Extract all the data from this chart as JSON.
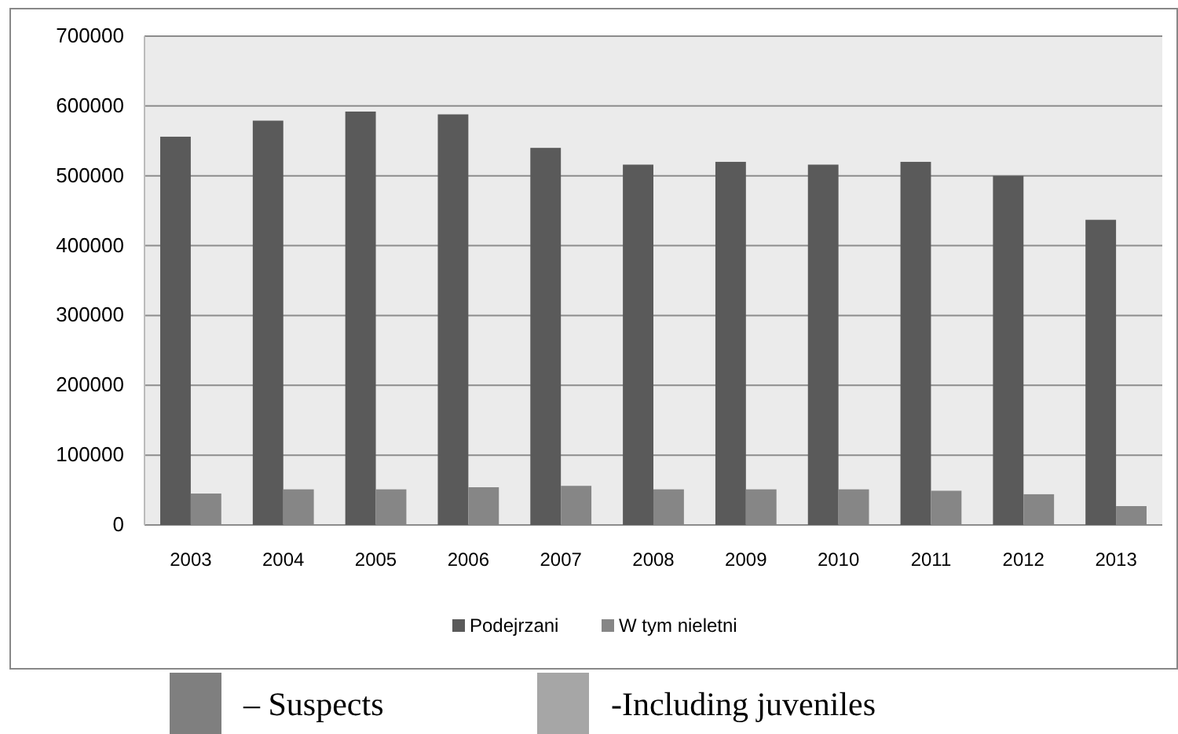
{
  "chart_data": {
    "type": "bar",
    "categories": [
      "2003",
      "2004",
      "2005",
      "2006",
      "2007",
      "2008",
      "2009",
      "2010",
      "2011",
      "2012",
      "2013"
    ],
    "series": [
      {
        "name": "Podejrzani",
        "color": "#5a5a5a",
        "values": [
          556000,
          579000,
          592000,
          588000,
          540000,
          516000,
          520000,
          516000,
          520000,
          500000,
          437000
        ]
      },
      {
        "name": "W tym nieletni",
        "color": "#868686",
        "values": [
          45000,
          51000,
          51000,
          54000,
          56000,
          51000,
          51000,
          51000,
          49000,
          44000,
          27000
        ]
      }
    ],
    "ylim": [
      0,
      700000
    ],
    "yticks": [
      0,
      100000,
      200000,
      300000,
      400000,
      500000,
      600000,
      700000
    ],
    "grid": "y",
    "legend": "bottom",
    "annotations": [
      "– Suspects",
      "-Including juveniles"
    ]
  }
}
